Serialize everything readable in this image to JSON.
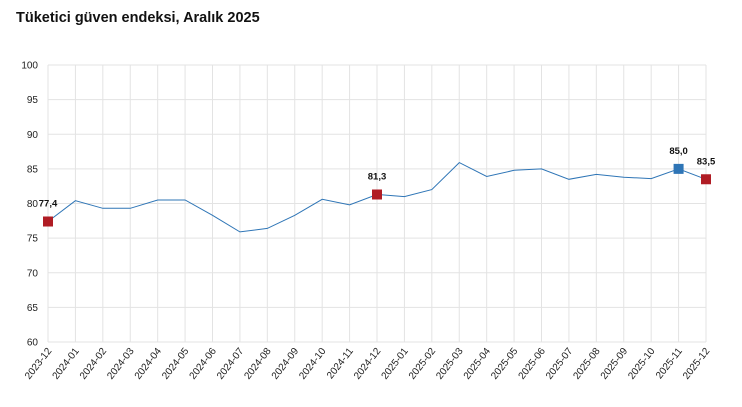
{
  "chart_data": {
    "type": "line",
    "title": "Tüketici güven endeksi, Aralık 2025",
    "xlabel": "",
    "ylabel": "",
    "ylim": [
      60,
      100
    ],
    "yticks": [
      "60",
      "65",
      "70",
      "75",
      "80",
      "85",
      "90",
      "95",
      "100"
    ],
    "grid": true,
    "legend": "none",
    "categories": [
      "2023-12",
      "2024-01",
      "2024-02",
      "2024-03",
      "2024-04",
      "2024-05",
      "2024-06",
      "2024-07",
      "2024-08",
      "2024-09",
      "2024-10",
      "2024-11",
      "2024-12",
      "2025-01",
      "2025-02",
      "2025-03",
      "2025-04",
      "2025-05",
      "2025-06",
      "2025-07",
      "2025-08",
      "2025-09",
      "2025-10",
      "2025-11",
      "2025-12"
    ],
    "series": [
      {
        "color": "#2e75b6",
        "values": [
          77.4,
          80.4,
          79.3,
          79.3,
          80.5,
          80.5,
          78.3,
          75.9,
          76.4,
          78.3,
          80.6,
          79.8,
          81.3,
          81.0,
          82.0,
          85.9,
          83.9,
          84.8,
          85.0,
          83.5,
          84.2,
          83.8,
          83.6,
          85.0,
          83.5
        ]
      }
    ],
    "highlighted_points": [
      {
        "category": "2023-12",
        "value": 77.4,
        "label": "77,4",
        "color": "#b01c24"
      },
      {
        "category": "2024-12",
        "value": 81.3,
        "label": "81,3",
        "color": "#b01c24"
      },
      {
        "category": "2025-11",
        "value": 85.0,
        "label": "85,0",
        "color": "#2e75b6"
      },
      {
        "category": "2025-12",
        "value": 83.5,
        "label": "83,5",
        "color": "#b01c24"
      }
    ]
  }
}
